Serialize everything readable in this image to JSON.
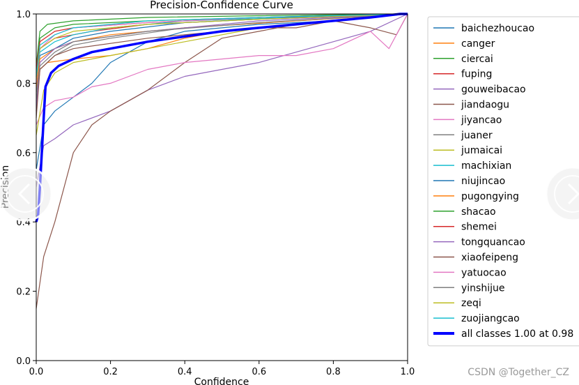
{
  "chart_data": {
    "type": "line",
    "title": "Precision-Confidence Curve",
    "xlabel": "Confidence",
    "ylabel": "Precision",
    "xlim": [
      0,
      1
    ],
    "ylim": [
      0,
      1
    ],
    "x_ticks": [
      "0.0",
      "0.2",
      "0.4",
      "0.6",
      "0.8",
      "1.0"
    ],
    "y_ticks": [
      "0.0",
      "0.2",
      "0.4",
      "0.6",
      "0.8",
      "1.0"
    ],
    "legend_position": "outside-right",
    "series": [
      {
        "name": "baichezhoucao",
        "color": "#1f77b4",
        "points": [
          [
            0,
            0.55
          ],
          [
            0.02,
            0.68
          ],
          [
            0.05,
            0.72
          ],
          [
            0.1,
            0.76
          ],
          [
            0.15,
            0.8
          ],
          [
            0.2,
            0.86
          ],
          [
            0.3,
            0.92
          ],
          [
            0.4,
            0.95
          ],
          [
            0.6,
            0.97
          ],
          [
            0.8,
            0.98
          ],
          [
            1.0,
            1.0
          ]
        ]
      },
      {
        "name": "canger",
        "color": "#ff7f0e",
        "points": [
          [
            0,
            0.72
          ],
          [
            0.01,
            0.84
          ],
          [
            0.03,
            0.86
          ],
          [
            0.1,
            0.87
          ],
          [
            0.2,
            0.88
          ],
          [
            0.3,
            0.9
          ],
          [
            0.4,
            0.93
          ],
          [
            0.5,
            0.95
          ],
          [
            0.7,
            0.97
          ],
          [
            1.0,
            1.0
          ]
        ]
      },
      {
        "name": "ciercai",
        "color": "#2ca02c",
        "points": [
          [
            0,
            0.85
          ],
          [
            0.01,
            0.95
          ],
          [
            0.03,
            0.97
          ],
          [
            0.1,
            0.98
          ],
          [
            0.3,
            0.99
          ],
          [
            0.6,
            0.995
          ],
          [
            1.0,
            1.0
          ]
        ]
      },
      {
        "name": "fuping",
        "color": "#d62728",
        "points": [
          [
            0,
            0.8
          ],
          [
            0.01,
            0.9
          ],
          [
            0.05,
            0.93
          ],
          [
            0.15,
            0.95
          ],
          [
            0.3,
            0.97
          ],
          [
            0.6,
            0.985
          ],
          [
            1.0,
            1.0
          ]
        ]
      },
      {
        "name": "gouweibacao",
        "color": "#9467bd",
        "points": [
          [
            0,
            0.5
          ],
          [
            0.02,
            0.62
          ],
          [
            0.05,
            0.64
          ],
          [
            0.1,
            0.68
          ],
          [
            0.2,
            0.72
          ],
          [
            0.3,
            0.78
          ],
          [
            0.4,
            0.82
          ],
          [
            0.5,
            0.84
          ],
          [
            0.6,
            0.86
          ],
          [
            0.7,
            0.89
          ],
          [
            0.8,
            0.92
          ],
          [
            0.9,
            0.95
          ],
          [
            1.0,
            1.0
          ]
        ]
      },
      {
        "name": "jiandaogu",
        "color": "#8c564b",
        "points": [
          [
            0,
            0.15
          ],
          [
            0.02,
            0.3
          ],
          [
            0.05,
            0.4
          ],
          [
            0.1,
            0.6
          ],
          [
            0.15,
            0.68
          ],
          [
            0.2,
            0.72
          ],
          [
            0.3,
            0.78
          ],
          [
            0.4,
            0.86
          ],
          [
            0.5,
            0.93
          ],
          [
            0.6,
            0.95
          ],
          [
            0.7,
            0.97
          ],
          [
            0.8,
            0.98
          ],
          [
            0.9,
            0.96
          ],
          [
            0.97,
            0.94
          ],
          [
            1.0,
            1.0
          ]
        ]
      },
      {
        "name": "jiyancao",
        "color": "#e377c2",
        "points": [
          [
            0,
            0.68
          ],
          [
            0.02,
            0.73
          ],
          [
            0.05,
            0.75
          ],
          [
            0.1,
            0.76
          ],
          [
            0.15,
            0.79
          ],
          [
            0.2,
            0.8
          ],
          [
            0.3,
            0.84
          ],
          [
            0.4,
            0.86
          ],
          [
            0.5,
            0.87
          ],
          [
            0.6,
            0.88
          ],
          [
            0.7,
            0.88
          ],
          [
            0.8,
            0.9
          ],
          [
            0.9,
            0.95
          ],
          [
            0.95,
            0.9
          ],
          [
            1.0,
            1.0
          ]
        ]
      },
      {
        "name": "juaner",
        "color": "#7f7f7f",
        "points": [
          [
            0,
            0.75
          ],
          [
            0.01,
            0.84
          ],
          [
            0.05,
            0.88
          ],
          [
            0.1,
            0.91
          ],
          [
            0.2,
            0.93
          ],
          [
            0.4,
            0.96
          ],
          [
            0.7,
            0.98
          ],
          [
            1.0,
            1.0
          ]
        ]
      },
      {
        "name": "jumaicai",
        "color": "#bcbd22",
        "points": [
          [
            0,
            0.65
          ],
          [
            0.02,
            0.78
          ],
          [
            0.05,
            0.83
          ],
          [
            0.1,
            0.86
          ],
          [
            0.2,
            0.88
          ],
          [
            0.3,
            0.9
          ],
          [
            0.4,
            0.92
          ],
          [
            0.6,
            0.96
          ],
          [
            0.8,
            0.98
          ],
          [
            1.0,
            1.0
          ]
        ]
      },
      {
        "name": "machixian",
        "color": "#17becf",
        "points": [
          [
            0,
            0.82
          ],
          [
            0.01,
            0.89
          ],
          [
            0.05,
            0.92
          ],
          [
            0.1,
            0.94
          ],
          [
            0.2,
            0.96
          ],
          [
            0.4,
            0.98
          ],
          [
            0.7,
            0.99
          ],
          [
            1.0,
            1.0
          ]
        ]
      },
      {
        "name": "niujincao",
        "color": "#1f77b4",
        "points": [
          [
            0,
            0.8
          ],
          [
            0.01,
            0.88
          ],
          [
            0.05,
            0.9
          ],
          [
            0.1,
            0.93
          ],
          [
            0.2,
            0.95
          ],
          [
            0.4,
            0.975
          ],
          [
            0.7,
            0.99
          ],
          [
            1.0,
            1.0
          ]
        ]
      },
      {
        "name": "pugongying",
        "color": "#ff7f0e",
        "points": [
          [
            0,
            0.78
          ],
          [
            0.01,
            0.87
          ],
          [
            0.05,
            0.9
          ],
          [
            0.1,
            0.92
          ],
          [
            0.2,
            0.94
          ],
          [
            0.4,
            0.96
          ],
          [
            0.7,
            0.98
          ],
          [
            1.0,
            1.0
          ]
        ]
      },
      {
        "name": "shacao",
        "color": "#2ca02c",
        "points": [
          [
            0,
            0.83
          ],
          [
            0.01,
            0.93
          ],
          [
            0.05,
            0.96
          ],
          [
            0.1,
            0.97
          ],
          [
            0.3,
            0.98
          ],
          [
            0.6,
            0.99
          ],
          [
            1.0,
            1.0
          ]
        ]
      },
      {
        "name": "shemei",
        "color": "#d62728",
        "points": [
          [
            0,
            0.84
          ],
          [
            0.01,
            0.92
          ],
          [
            0.05,
            0.95
          ],
          [
            0.1,
            0.96
          ],
          [
            0.3,
            0.975
          ],
          [
            0.6,
            0.99
          ],
          [
            1.0,
            1.0
          ]
        ]
      },
      {
        "name": "tongquancao",
        "color": "#9467bd",
        "points": [
          [
            0,
            0.72
          ],
          [
            0.01,
            0.86
          ],
          [
            0.05,
            0.9
          ],
          [
            0.1,
            0.92
          ],
          [
            0.3,
            0.95
          ],
          [
            0.6,
            0.98
          ],
          [
            1.0,
            1.0
          ]
        ]
      },
      {
        "name": "xiaofeipeng",
        "color": "#8c564b",
        "points": [
          [
            0,
            0.7
          ],
          [
            0.01,
            0.84
          ],
          [
            0.05,
            0.88
          ],
          [
            0.1,
            0.9
          ],
          [
            0.3,
            0.93
          ],
          [
            0.6,
            0.96
          ],
          [
            0.7,
            0.96
          ],
          [
            0.8,
            0.98
          ],
          [
            1.0,
            1.0
          ]
        ]
      },
      {
        "name": "yatuocao",
        "color": "#e377c2",
        "points": [
          [
            0,
            0.8
          ],
          [
            0.01,
            0.9
          ],
          [
            0.05,
            0.94
          ],
          [
            0.1,
            0.96
          ],
          [
            0.3,
            0.975
          ],
          [
            0.6,
            0.99
          ],
          [
            1.0,
            1.0
          ]
        ]
      },
      {
        "name": "yinshijue",
        "color": "#7f7f7f",
        "points": [
          [
            0,
            0.77
          ],
          [
            0.01,
            0.85
          ],
          [
            0.05,
            0.89
          ],
          [
            0.1,
            0.92
          ],
          [
            0.3,
            0.95
          ],
          [
            0.6,
            0.975
          ],
          [
            1.0,
            1.0
          ]
        ]
      },
      {
        "name": "zeqi",
        "color": "#bcbd22",
        "points": [
          [
            0,
            0.81
          ],
          [
            0.01,
            0.9
          ],
          [
            0.05,
            0.93
          ],
          [
            0.1,
            0.95
          ],
          [
            0.3,
            0.97
          ],
          [
            0.6,
            0.985
          ],
          [
            1.0,
            1.0
          ]
        ]
      },
      {
        "name": "zuojiangcao",
        "color": "#17becf",
        "points": [
          [
            0,
            0.82
          ],
          [
            0.01,
            0.91
          ],
          [
            0.05,
            0.94
          ],
          [
            0.1,
            0.96
          ],
          [
            0.3,
            0.98
          ],
          [
            0.6,
            0.99
          ],
          [
            1.0,
            1.0
          ]
        ]
      },
      {
        "name": "all classes 1.00 at 0.98",
        "color": "#0000ff",
        "bold": true,
        "points": [
          [
            0,
            0.4
          ],
          [
            0.005,
            0.42
          ],
          [
            0.01,
            0.5
          ],
          [
            0.015,
            0.6
          ],
          [
            0.02,
            0.7
          ],
          [
            0.025,
            0.79
          ],
          [
            0.04,
            0.83
          ],
          [
            0.06,
            0.85
          ],
          [
            0.1,
            0.87
          ],
          [
            0.15,
            0.89
          ],
          [
            0.2,
            0.9
          ],
          [
            0.3,
            0.92
          ],
          [
            0.4,
            0.935
          ],
          [
            0.5,
            0.95
          ],
          [
            0.6,
            0.96
          ],
          [
            0.7,
            0.97
          ],
          [
            0.8,
            0.98
          ],
          [
            0.9,
            0.99
          ],
          [
            0.98,
            1.0
          ],
          [
            1.0,
            1.0
          ]
        ]
      }
    ]
  },
  "nav": {
    "prev_icon": "chevron-left-icon",
    "next_icon": "chevron-right-icon"
  },
  "watermark": "CSDN @Together_CZ"
}
